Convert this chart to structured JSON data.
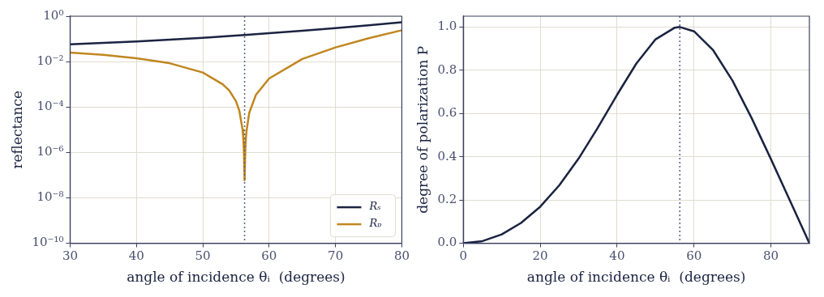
{
  "chart_data": [
    {
      "type": "line",
      "xlabel": "angle of incidence θᵢ  (degrees)",
      "ylabel": "reflectance",
      "log": "y",
      "grid": true,
      "legend": "bottom right",
      "xlim": [
        30,
        80
      ],
      "xticks": [
        30,
        40,
        50,
        60,
        70,
        80
      ],
      "ylim": [
        1e-10,
        1
      ],
      "yticks": [
        {
          "value": 1e-10,
          "label": "10⁻¹⁰"
        },
        {
          "value": 1e-08,
          "label": "10⁻⁸"
        },
        {
          "value": 1e-06,
          "label": "10⁻⁶"
        },
        {
          "value": 0.0001,
          "label": "10⁻⁴"
        },
        {
          "value": 0.01,
          "label": "10⁻²"
        },
        {
          "value": 1,
          "label": "10⁰"
        }
      ],
      "ref_lines": [
        {
          "axis": "x",
          "value": 56.3,
          "color": "#5a6080",
          "line_style": "dotted"
        }
      ],
      "series": [
        {
          "name": "Rₛ",
          "color": "#1a2340",
          "x": [
            30,
            35,
            40,
            45,
            50,
            54,
            56.3,
            60,
            65,
            70,
            75,
            80
          ],
          "values": [
            0.058,
            0.066,
            0.077,
            0.092,
            0.112,
            0.133,
            0.148,
            0.177,
            0.228,
            0.3,
            0.4,
            0.54
          ]
        },
        {
          "name": "Rₚ",
          "color": "#c0861f",
          "x": [
            30,
            35,
            40,
            45,
            50,
            53,
            54,
            55,
            55.5,
            56,
            56.1,
            56.2,
            56.3,
            56.4,
            56.5,
            56.6,
            57,
            58,
            60,
            65,
            70,
            75,
            80
          ],
          "values": [
            0.025,
            0.02,
            0.014,
            0.0085,
            0.0033,
            0.001,
            0.00053,
            0.00018,
            7e-05,
            1e-05,
            4.5e-06,
            1.1e-06,
            6e-08,
            1.1e-06,
            4.5e-06,
            9e-06,
            5.5e-05,
            0.00034,
            0.0018,
            0.013,
            0.042,
            0.107,
            0.24
          ]
        }
      ]
    },
    {
      "type": "line",
      "xlabel": "angle of incidence θᵢ  (degrees)",
      "ylabel": "degree of polarization P",
      "grid": true,
      "xlim": [
        0,
        90
      ],
      "xticks": [
        0,
        20,
        40,
        60,
        80
      ],
      "ylim": [
        0,
        1.05
      ],
      "yticks": [
        {
          "value": 0,
          "label": "0.0"
        },
        {
          "value": 0.2,
          "label": "0.2"
        },
        {
          "value": 0.4,
          "label": "0.4"
        },
        {
          "value": 0.6,
          "label": "0.6"
        },
        {
          "value": 0.8,
          "label": "0.8"
        },
        {
          "value": 1,
          "label": "1.0"
        }
      ],
      "ref_lines": [
        {
          "axis": "x",
          "value": 56.3,
          "color": "#5a6080",
          "line_style": "dotted"
        }
      ],
      "series": [
        {
          "color": "#1a2340",
          "x": [
            0,
            5,
            10,
            15,
            20,
            25,
            30,
            35,
            40,
            45,
            50,
            55,
            56.3,
            60,
            65,
            70,
            75,
            80,
            85,
            90
          ],
          "values": [
            0,
            0.01,
            0.041,
            0.094,
            0.169,
            0.269,
            0.392,
            0.535,
            0.687,
            0.831,
            0.943,
            0.997,
            1.0,
            0.98,
            0.892,
            0.752,
            0.578,
            0.389,
            0.195,
            0
          ]
        }
      ]
    }
  ]
}
